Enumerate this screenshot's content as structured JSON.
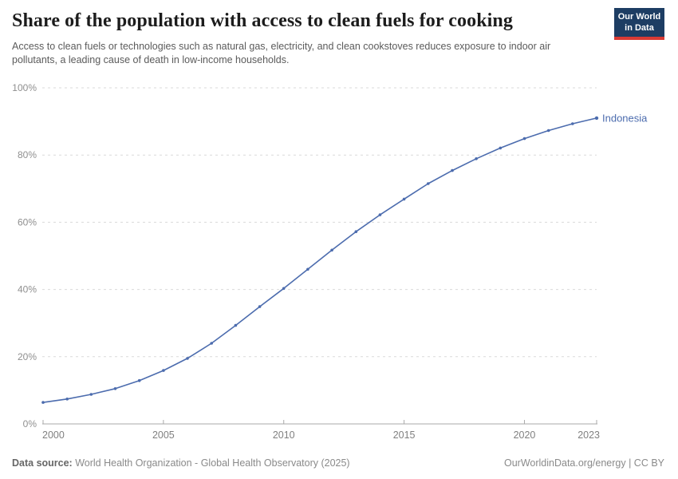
{
  "header": {
    "title": "Share of the population with access to clean fuels for cooking",
    "subtitle": "Access to clean fuels or technologies such as natural gas, electricity, and clean cookstoves reduces exposure to indoor air pollutants, a leading cause of death in low-income households.",
    "logo": {
      "line1": "Our World",
      "line2": "in Data",
      "bg_color": "#1d3d63",
      "stripe_color": "#d93a34"
    }
  },
  "chart_data": {
    "type": "line",
    "title": "Share of the population with access to clean fuels for cooking",
    "xlabel": "",
    "ylabel": "",
    "xlim": [
      2000,
      2023
    ],
    "ylim": [
      0,
      100
    ],
    "x_ticks": [
      2000,
      2005,
      2010,
      2015,
      2020,
      2023
    ],
    "y_ticks": [
      0,
      20,
      40,
      60,
      80,
      100
    ],
    "y_tick_suffix": "%",
    "grid": "horizontal-dashed",
    "legend_position": "end-of-line-label",
    "series": [
      {
        "name": "Indonesia",
        "color": "#4c6cae",
        "x": [
          2000,
          2001,
          2002,
          2003,
          2004,
          2005,
          2006,
          2007,
          2008,
          2009,
          2010,
          2011,
          2012,
          2013,
          2014,
          2015,
          2016,
          2017,
          2018,
          2019,
          2020,
          2021,
          2022,
          2023
        ],
        "values": [
          6.4,
          7.4,
          8.8,
          10.5,
          12.9,
          15.9,
          19.5,
          24.0,
          29.3,
          34.9,
          40.3,
          46.0,
          51.7,
          57.2,
          62.2,
          66.9,
          71.5,
          75.4,
          78.9,
          82.1,
          84.9,
          87.3,
          89.3,
          91.0
        ]
      }
    ]
  },
  "footer": {
    "source_label": "Data source:",
    "source_text": "World Health Organization - Global Health Observatory (2025)",
    "license_text": "OurWorldinData.org/energy | CC BY"
  }
}
